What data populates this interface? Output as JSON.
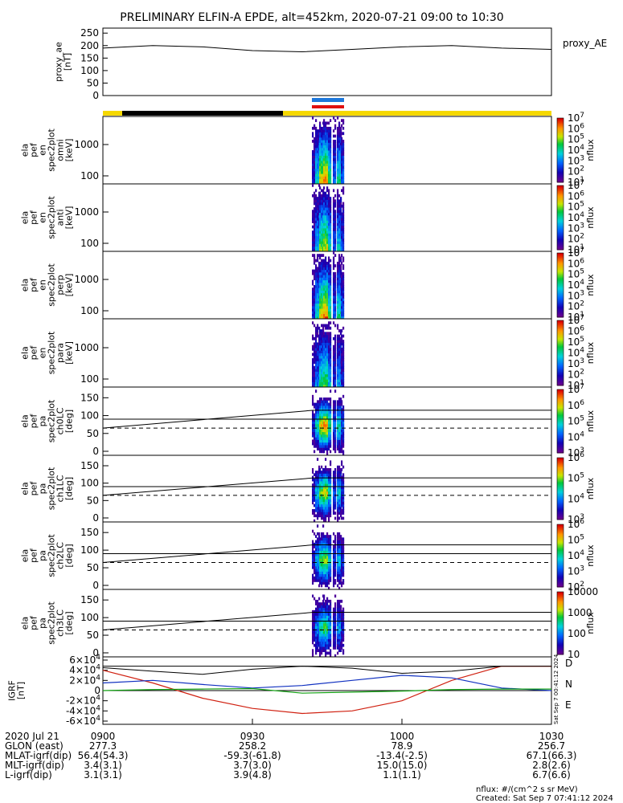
{
  "title": "PRELIMINARY ELFIN-A EPDE, alt=452km, 2020-07-21 09:00 to 10:30",
  "colors": {
    "blue_bar": "#1e78dc",
    "red_bar": "#e01010",
    "yellow_bar": "#f5d800",
    "black_bar": "#000000",
    "line_D": "#d02010",
    "line_N": "#1030c0",
    "line_E": "#10a010"
  },
  "chart_data": [
    {
      "type": "line",
      "panel": "proxy_ae",
      "ylabel": "proxy_ae\n[nT]",
      "legend": "proxy_AE",
      "yticks": [
        "0",
        "50",
        "100",
        "150",
        "200",
        "250"
      ],
      "ylim": [
        0,
        270
      ],
      "x_minutes": [
        0,
        10,
        20,
        30,
        40,
        50,
        60,
        70,
        80,
        90
      ],
      "values": [
        190,
        200,
        195,
        180,
        175,
        185,
        195,
        200,
        190,
        185
      ]
    },
    {
      "type": "heatmap",
      "panel": "spec2plot omni",
      "ylabel": "ela\npef\nen\nspec2plot\nomni\n[keV]",
      "yticks": [
        "100",
        "1000"
      ],
      "colorbar": {
        "label": "nflux",
        "ticks": [
          "10^1",
          "10^2",
          "10^3",
          "10^4",
          "10^5",
          "10^6",
          "10^7"
        ]
      }
    },
    {
      "type": "heatmap",
      "panel": "spec2plot anti",
      "ylabel": "ela\npef\nen\nspec2plot\nanti\n[keV]",
      "yticks": [
        "100",
        "1000"
      ],
      "colorbar": {
        "label": "nflux",
        "ticks": [
          "10^1",
          "10^2",
          "10^3",
          "10^4",
          "10^5",
          "10^6",
          "10^7"
        ]
      }
    },
    {
      "type": "heatmap",
      "panel": "spec2plot perp",
      "ylabel": "ela\npef\nen\nspec2plot\nperp\n[keV]",
      "yticks": [
        "100",
        "1000"
      ],
      "colorbar": {
        "label": "nflux",
        "ticks": [
          "10^1",
          "10^2",
          "10^3",
          "10^4",
          "10^5",
          "10^6",
          "10^7"
        ]
      }
    },
    {
      "type": "heatmap",
      "panel": "spec2plot para",
      "ylabel": "ela\npef\nen\nspec2plot\npara\n[keV]",
      "yticks": [
        "100",
        "1000"
      ],
      "colorbar": {
        "label": "nflux",
        "ticks": [
          "10^1",
          "10^2",
          "10^3",
          "10^4",
          "10^5",
          "10^6",
          "10^7"
        ]
      }
    },
    {
      "type": "heatmap",
      "panel": "spec2plot ch0LC",
      "ylabel": "ela\npef\npa\nspec2plot\nch0LC\n[deg]",
      "yticks": [
        "0",
        "50",
        "100",
        "150"
      ],
      "colorbar": {
        "label": "nflux",
        "ticks": [
          "10^3",
          "10^4",
          "10^5",
          "10^6",
          "10^7"
        ]
      }
    },
    {
      "type": "heatmap",
      "panel": "spec2plot ch1LC",
      "ylabel": "ela\npef\npa\nspec2plot\nch1LC\n[deg]",
      "yticks": [
        "0",
        "50",
        "100",
        "150"
      ],
      "colorbar": {
        "label": "nflux",
        "ticks": [
          "10^3",
          "10^4",
          "10^5",
          "10^6"
        ]
      }
    },
    {
      "type": "heatmap",
      "panel": "spec2plot ch2LC",
      "ylabel": "ela\npef\npa\nspec2plot\nch2LC\n[deg]",
      "yticks": [
        "0",
        "50",
        "100",
        "150"
      ],
      "colorbar": {
        "label": "nflux",
        "ticks": [
          "10^2",
          "10^3",
          "10^4",
          "10^5",
          "10^6"
        ]
      }
    },
    {
      "type": "heatmap",
      "panel": "spec2plot ch3LC",
      "ylabel": "ela\npef\npa\nspec2plot\nch3LC\n[deg]",
      "yticks": [
        "0",
        "50",
        "100",
        "150"
      ],
      "colorbar": {
        "label": "nflux",
        "ticks": [
          "10",
          "100",
          "1000",
          "10000"
        ]
      }
    },
    {
      "type": "line",
      "panel": "IGRF",
      "ylabel": "IGRF\n[nT]",
      "yticks": [
        "-6×10^4",
        "-4×10^4",
        "-2×10^4",
        "0",
        "2×10^4",
        "4×10^4",
        "6×10^4"
      ],
      "ylim": [
        -60000,
        60000
      ],
      "legend": [
        "D",
        "N",
        "E"
      ],
      "x_minutes": [
        0,
        10,
        20,
        30,
        40,
        50,
        60,
        70,
        80,
        90
      ],
      "series": [
        {
          "name": "D",
          "values": [
            40000,
            15000,
            -15000,
            -35000,
            -45000,
            -40000,
            -20000,
            20000,
            48000,
            48000
          ]
        },
        {
          "name": "N",
          "values": [
            15000,
            20000,
            12000,
            5000,
            10000,
            20000,
            30000,
            25000,
            5000,
            0
          ]
        },
        {
          "name": "E",
          "values": [
            0,
            2000,
            3000,
            4000,
            -5000,
            -3000,
            -1000,
            2000,
            3000,
            3000
          ]
        }
      ],
      "side_label": "Sat Sep  7 00:41:12 2024"
    }
  ],
  "x_axis": {
    "ticks": [
      "0900",
      "0930",
      "1000",
      "1030"
    ],
    "rows": [
      {
        "label": "2020 Jul 21",
        "values": [
          "0900",
          "0930",
          "1000",
          "1030"
        ]
      },
      {
        "label": "GLON (east)",
        "values": [
          "277.3",
          "258.2",
          "78.9",
          "256.7"
        ]
      },
      {
        "label": "MLAT-igrf(dip)",
        "values": [
          "56.4(54.3)",
          "-59.3(-61.8)",
          "-13.4(-2.5)",
          "67.1(66.3)"
        ]
      },
      {
        "label": "MLT-igrf(dip)",
        "values": [
          "3.4(3.1)",
          "3.7(3.0)",
          "15.0(15.0)",
          "2.8(2.6)"
        ]
      },
      {
        "label": "L-igrf(dip)",
        "values": [
          "3.1(3.1)",
          "3.9(4.8)",
          "1.1(1.1)",
          "6.7(6.6)"
        ]
      }
    ]
  },
  "footer": {
    "units": "nflux: #/(cm^2 s sr MeV)",
    "created": "Created: Sat Sep  7 07:41:12 2024"
  }
}
